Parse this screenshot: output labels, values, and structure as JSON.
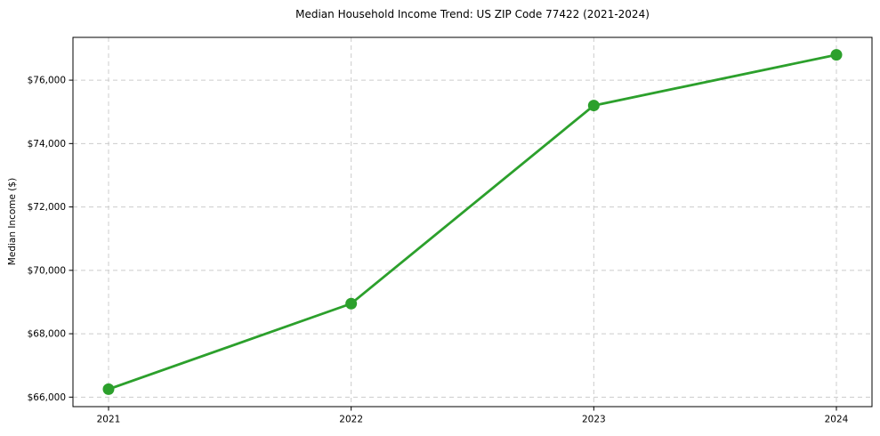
{
  "chart_data": {
    "type": "line",
    "title": "Median Household Income Trend: US ZIP Code 77422 (2021-2024)",
    "xlabel": "",
    "ylabel": "Median Income ($)",
    "categories": [
      "2021",
      "2022",
      "2023",
      "2024"
    ],
    "series": [
      {
        "name": "Median Household Income",
        "values": [
          66250,
          68950,
          75200,
          76800
        ]
      }
    ],
    "y_ticks": [
      {
        "value": 66000,
        "label": "$66,000"
      },
      {
        "value": 68000,
        "label": "$68,000"
      },
      {
        "value": 70000,
        "label": "$70,000"
      },
      {
        "value": 72000,
        "label": "$72,000"
      },
      {
        "value": 74000,
        "label": "$74,000"
      },
      {
        "value": 76000,
        "label": "$76,000"
      }
    ],
    "ylim": [
      65700,
      77350
    ],
    "grid": true,
    "grid_style": "dashed",
    "legend": "none",
    "line_color": "#2ca02c",
    "marker_color": "#2ca02c",
    "grid_color": "#cccccc",
    "spine_color": "#000000",
    "background": "#ffffff"
  }
}
